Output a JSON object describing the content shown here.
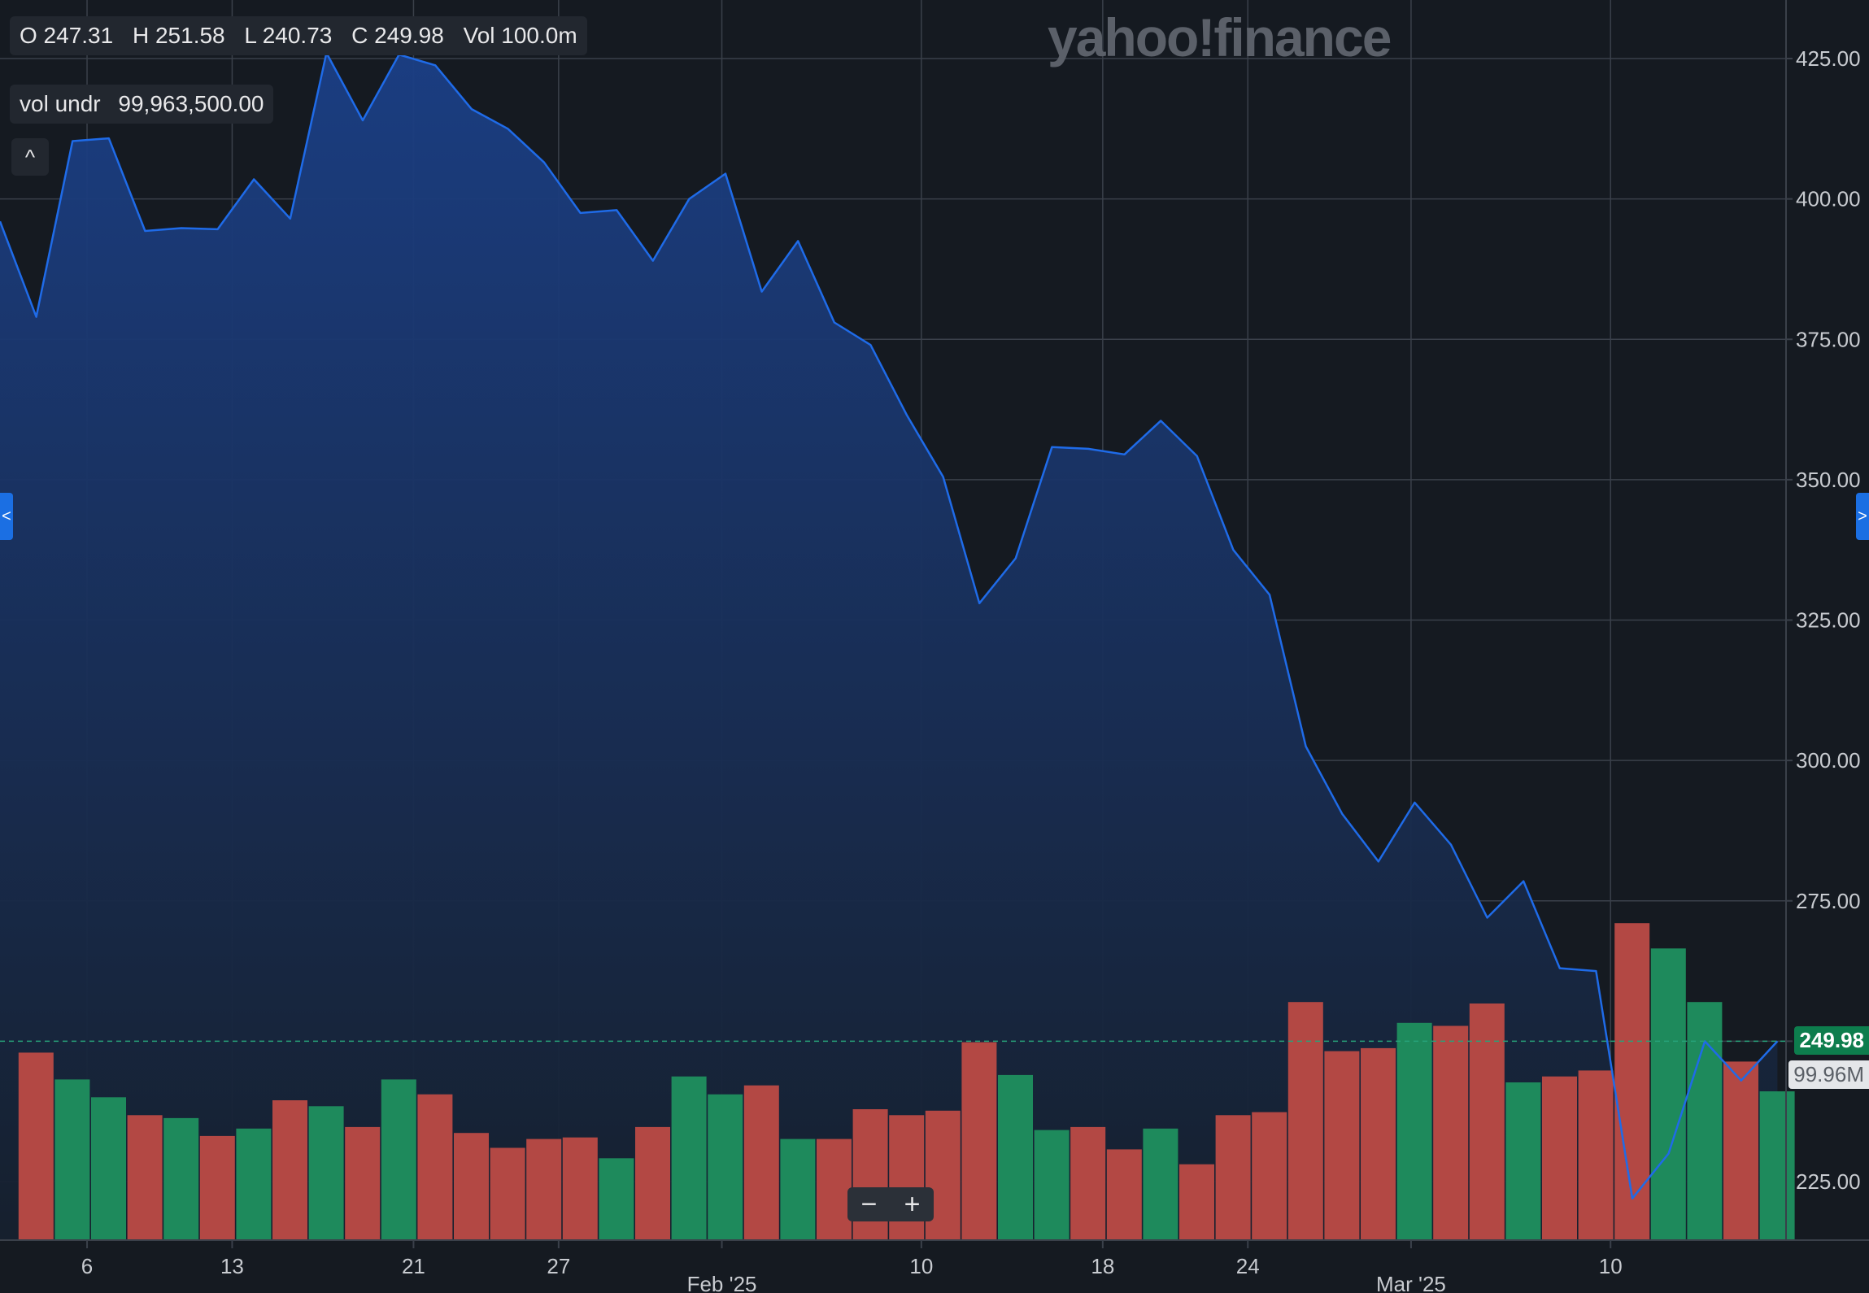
{
  "legend": {
    "open": "O 247.31",
    "high": "H 251.58",
    "low": "L 240.73",
    "close": "C 249.98",
    "volume": "Vol 100.0m",
    "vol_label": "vol undr",
    "vol_value": "99,963,500.00"
  },
  "watermark": "yahoo!finance",
  "last_price_label": "249.98",
  "last_volume_label": "99.96M",
  "controls": {
    "collapse": "^",
    "zoom_out": "−",
    "zoom_in": "+",
    "left_handle": "<",
    "right_handle": ">"
  },
  "colors": {
    "line": "#1f6be8",
    "area_top": "#1b3f86",
    "area_bottom": "#16202e",
    "up_volume": "#1e8a5c",
    "down_volume": "#b34844",
    "last_price_bg": "#0d7d4d",
    "background": "#151a21",
    "grid": "#3a404a",
    "axis_text": "#c8cbd0"
  },
  "chart_data": {
    "type": "area",
    "title": "",
    "xlabel": "",
    "ylabel": "",
    "ylim": [
      215.0,
      434.0
    ],
    "y_ticks": [
      "225.00",
      "250.00",
      "275.00",
      "300.00",
      "325.00",
      "350.00",
      "375.00",
      "400.00",
      "425.00"
    ],
    "x_axis": {
      "ticks": [
        {
          "label": "6",
          "index": 2.4
        },
        {
          "label": "13",
          "index": 6.4
        },
        {
          "label": "21",
          "index": 11.4
        },
        {
          "label": "27",
          "index": 15.4
        },
        {
          "label": "Feb '25",
          "index": 19.9,
          "major": true
        },
        {
          "label": "10",
          "index": 25.4
        },
        {
          "label": "18",
          "index": 30.4
        },
        {
          "label": "24",
          "index": 34.4
        },
        {
          "label": "Mar '25",
          "index": 38.9,
          "major": true
        },
        {
          "label": "10",
          "index": 44.4
        }
      ]
    },
    "series": [
      {
        "values": [
          396.0,
          379.0,
          410.3,
          410.8,
          394.3,
          394.8,
          394.6,
          403.5,
          396.5,
          426.0,
          414.0,
          425.7,
          423.8,
          416.0,
          412.5,
          406.5,
          397.5,
          398.0,
          389.0,
          400.0,
          404.5,
          383.5,
          392.5,
          378.0,
          374.0,
          361.5,
          350.5,
          328.0,
          336.0,
          355.8,
          355.5,
          354.5,
          360.5,
          354.2,
          337.5,
          329.5,
          302.5,
          290.5,
          282.0,
          292.5,
          285.0,
          272.0,
          278.5,
          263.0,
          262.5,
          222.0,
          230.0,
          250.0,
          243.0,
          250.0
        ]
      },
      {
        "name": "vol undr",
        "values": [
          126,
          108,
          96,
          84,
          82,
          70,
          75,
          94,
          90,
          76,
          108,
          98,
          72,
          62,
          68,
          69,
          55,
          76,
          110,
          98,
          104,
          68,
          68,
          88,
          84,
          87,
          133,
          111,
          74,
          76,
          61,
          75,
          51,
          84,
          86,
          160,
          127,
          129,
          146,
          144,
          159,
          106,
          110,
          114,
          213,
          196,
          160,
          120,
          100.0
        ]
      }
    ],
    "volume_up": [
      false,
      true,
      true,
      false,
      true,
      false,
      true,
      false,
      true,
      false,
      true,
      false,
      false,
      false,
      false,
      false,
      true,
      false,
      true,
      true,
      false,
      true,
      false,
      false,
      false,
      false,
      false,
      true,
      true,
      false,
      false,
      true,
      false,
      false,
      false,
      false,
      false,
      false,
      true,
      false,
      false,
      true,
      false,
      false,
      false,
      true,
      true,
      false,
      true
    ]
  }
}
